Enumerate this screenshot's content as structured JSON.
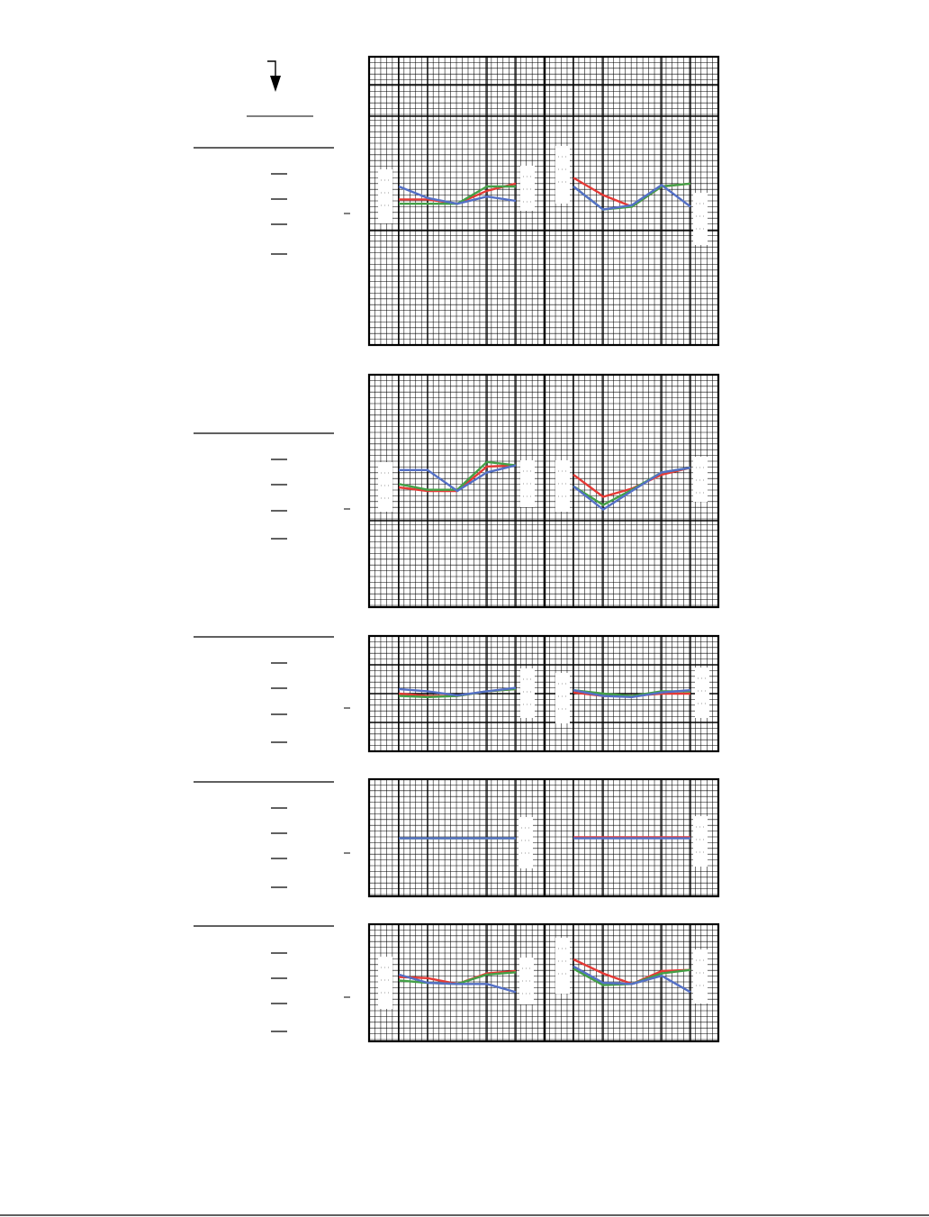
{
  "page": {
    "title": "",
    "footer_text": ""
  },
  "colors": {
    "grid": "#000000",
    "background": "#ffffff",
    "label_box": "#ffffff"
  },
  "header_decoration": {
    "arrow_icon": "arrow-down-icon"
  },
  "chart_data": [
    {
      "type": "line",
      "title": "",
      "grid": true,
      "ylim": [
        0,
        100
      ],
      "groups": [
        {
          "x": [
            0,
            1,
            2,
            3,
            4
          ],
          "series": [
            {
              "color": "#e53935",
              "values": [
                50.5,
                50.5,
                49,
                53.5,
                56
              ]
            },
            {
              "color": "#43a047",
              "values": [
                49,
                49,
                49,
                55,
                55
              ]
            },
            {
              "color": "#5470c6",
              "values": [
                55,
                51,
                49,
                51.5,
                50
              ]
            }
          ]
        },
        {
          "x": [
            0,
            1,
            2,
            3,
            4
          ],
          "series": [
            {
              "color": "#e53935",
              "values": [
                58,
                52,
                48,
                55,
                56
              ]
            },
            {
              "color": "#43a047",
              "values": [
                55,
                47,
                48,
                55,
                56
              ]
            },
            {
              "color": "#5470c6",
              "values": [
                55,
                47,
                48.5,
                55.5,
                48
              ]
            }
          ]
        }
      ]
    },
    {
      "type": "line",
      "title": "",
      "grid": true,
      "ylim": [
        0,
        100
      ],
      "groups": [
        {
          "x": [
            0,
            1,
            2,
            3,
            4
          ],
          "series": [
            {
              "color": "#e53935",
              "values": [
                51.5,
                50,
                50,
                60.5,
                61
              ]
            },
            {
              "color": "#43a047",
              "values": [
                53,
                50.5,
                50.5,
                62.5,
                61
              ]
            },
            {
              "color": "#5470c6",
              "values": [
                59,
                59,
                50,
                58,
                61
              ]
            }
          ]
        },
        {
          "x": [
            0,
            1,
            2,
            3,
            4
          ],
          "series": [
            {
              "color": "#e53935",
              "values": [
                57,
                47.5,
                51,
                57,
                60
              ]
            },
            {
              "color": "#43a047",
              "values": [
                52,
                44,
                50.5,
                58,
                60
              ]
            },
            {
              "color": "#5470c6",
              "values": [
                52,
                42,
                50,
                58,
                60
              ]
            }
          ]
        }
      ]
    },
    {
      "type": "line",
      "title": "",
      "grid": true,
      "ylim": [
        0,
        100
      ],
      "groups": [
        {
          "x": [
            0,
            1,
            2,
            3,
            4
          ],
          "series": [
            {
              "color": "#e53935",
              "values": [
                50,
                48,
                48,
                52,
                54
              ]
            },
            {
              "color": "#43a047",
              "values": [
                48,
                47,
                48,
                52,
                54
              ]
            },
            {
              "color": "#5470c6",
              "values": [
                54,
                52,
                48.5,
                52,
                55
              ]
            }
          ]
        },
        {
          "x": [
            0,
            1,
            2,
            3,
            4
          ],
          "series": [
            {
              "color": "#e53935",
              "values": [
                51,
                48,
                48,
                50,
                50
              ]
            },
            {
              "color": "#43a047",
              "values": [
                53,
                50,
                48,
                52,
                52
              ]
            },
            {
              "color": "#5470c6",
              "values": [
                53,
                48,
                47,
                51,
                53
              ]
            }
          ]
        }
      ]
    },
    {
      "type": "line",
      "title": "",
      "grid": true,
      "ylim": [
        0,
        100
      ],
      "groups": [
        {
          "x": [
            0,
            1,
            2,
            3,
            4
          ],
          "series": [
            {
              "color": "#43a047",
              "values": [
                49.5,
                49.5,
                49.5,
                49.5,
                49.5
              ]
            },
            {
              "color": "#5470c6",
              "values": [
                49.5,
                49.5,
                49.5,
                49.5,
                49.5
              ]
            }
          ]
        },
        {
          "x": [
            0,
            1,
            2,
            3,
            4
          ],
          "series": [
            {
              "color": "#e53935",
              "values": [
                50.5,
                50.5,
                50.5,
                50.5,
                50.5
              ]
            },
            {
              "color": "#5470c6",
              "values": [
                49.5,
                49.5,
                49.5,
                49.5,
                49.5
              ]
            }
          ]
        }
      ]
    },
    {
      "type": "line",
      "title": "",
      "grid": true,
      "ylim": [
        0,
        100
      ],
      "groups": [
        {
          "x": [
            0,
            1,
            2,
            3,
            4
          ],
          "series": [
            {
              "color": "#e53935",
              "values": [
                55,
                54,
                49,
                58,
                60
              ]
            },
            {
              "color": "#43a047",
              "values": [
                52,
                50,
                49,
                57,
                59
              ]
            },
            {
              "color": "#5470c6",
              "values": [
                57,
                50,
                49,
                49,
                42
              ]
            }
          ]
        },
        {
          "x": [
            0,
            1,
            2,
            3,
            4
          ],
          "series": [
            {
              "color": "#e53935",
              "values": [
                70,
                58,
                49,
                60,
                61
              ]
            },
            {
              "color": "#43a047",
              "values": [
                62,
                48,
                49,
                58,
                61
              ]
            },
            {
              "color": "#5470c6",
              "values": [
                64,
                50,
                49,
                56,
                42
              ]
            }
          ]
        }
      ]
    }
  ]
}
